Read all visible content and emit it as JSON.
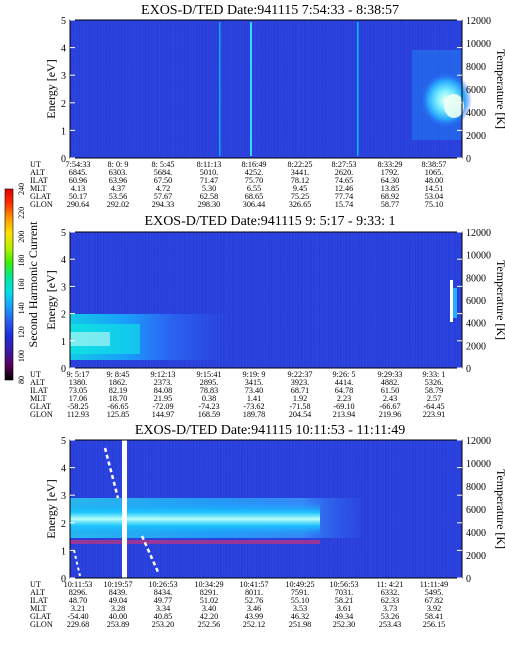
{
  "chart_data": {
    "type": "heatmap",
    "colorbar": {
      "label": "Second Harmonic Current",
      "ticks": [
        "80",
        "100",
        "120",
        "140",
        "160",
        "180",
        "200",
        "220",
        "240"
      ],
      "colors": [
        "#000000",
        "#5a005a",
        "#3b1aa8",
        "#1f2bd8",
        "#2a5cf0",
        "#1aa0ff",
        "#00e0e8",
        "#00e89a",
        "#3cf000",
        "#b8f000",
        "#ffe000",
        "#ff9a00",
        "#ff3000",
        "#e00000"
      ]
    },
    "panels": [
      {
        "title": "EXOS-D/TED   Date:941115  7:54:33 - 8:38:57",
        "ylabel": "Energy [eV]",
        "y2label": "Temperature [K]",
        "ylim": [
          0,
          5
        ],
        "y2lim": [
          0,
          12000
        ],
        "yticks": [
          "0",
          "1",
          "2",
          "3",
          "4",
          "5"
        ],
        "y2ticks": [
          "0",
          "2000",
          "4000",
          "6000",
          "8000",
          "10000",
          "12000"
        ],
        "ephemeris": [
          {
            "label": "UT",
            "values": [
              "7:54:33",
              "8: 0: 9",
              "8: 5:45",
              "8:11:13",
              "8:16:49",
              "8:22:25",
              "8:27:53",
              "8:33:29",
              "8:38:57"
            ]
          },
          {
            "label": "ALT",
            "values": [
              "6845.",
              "6303.",
              "5684.",
              "5010.",
              "4252.",
              "3441.",
              "2620.",
              "1792.",
              "1065."
            ]
          },
          {
            "label": "ILAT",
            "values": [
              "60.96",
              "63.96",
              "67.50",
              "71.47",
              "75.70",
              "78.12",
              "74.65",
              "64.30",
              "48.00"
            ]
          },
          {
            "label": "MLT",
            "values": [
              "4.13",
              "4.37",
              "4.72",
              "5.30",
              "6.55",
              "9.45",
              "12.46",
              "13.85",
              "14.51"
            ]
          },
          {
            "label": "GLAT",
            "values": [
              "50.17",
              "53.56",
              "57.67",
              "62.58",
              "68.65",
              "75.25",
              "77.74",
              "68.92",
              "53.04"
            ]
          },
          {
            "label": "GLON",
            "values": [
              "290.64",
              "292.02",
              "294.33",
              "298.30",
              "306.44",
              "326.65",
              "15.74",
              "58.77",
              "75.10"
            ]
          }
        ]
      },
      {
        "title": "EXOS-D/TED   Date:941115  9: 5:17 - 9:33: 1",
        "ylabel": "Energy [eV]",
        "y2label": "Temperature [K]",
        "ylim": [
          0,
          5
        ],
        "y2lim": [
          0,
          12000
        ],
        "yticks": [
          "0",
          "1",
          "2",
          "3",
          "4",
          "5"
        ],
        "y2ticks": [
          "0",
          "2000",
          "4000",
          "6000",
          "8000",
          "10000",
          "12000"
        ],
        "ephemeris": [
          {
            "label": "UT",
            "values": [
              "9: 5:17",
              "9: 8:45",
              "9:12:13",
              "9:15:41",
              "9:19: 9",
              "9:22:37",
              "9:26: 5",
              "9:29:33",
              "9:33: 1"
            ]
          },
          {
            "label": "ALT",
            "values": [
              "1380.",
              "1862.",
              "2373.",
              "2895.",
              "3415.",
              "3923.",
              "4414.",
              "4882.",
              "5326."
            ]
          },
          {
            "label": "ILAT",
            "values": [
              "73.05",
              "82.19",
              "84.08",
              "78.83",
              "73.40",
              "68.71",
              "64.78",
              "61.50",
              "58.79"
            ]
          },
          {
            "label": "MLT",
            "values": [
              "17.06",
              "18.70",
              "21.95",
              "0.38",
              "1.41",
              "1.92",
              "2.23",
              "2.43",
              "2.57"
            ]
          },
          {
            "label": "GLAT",
            "values": [
              "-58.25",
              "-66.65",
              "-72.09",
              "-74.23",
              "-73.62",
              "-71.58",
              "-69.10",
              "-66.67",
              "-64.45"
            ]
          },
          {
            "label": "GLON",
            "values": [
              "112.93",
              "125.85",
              "144.97",
              "168.59",
              "189.78",
              "204.54",
              "213.94",
              "219.96",
              "223.91"
            ]
          }
        ]
      },
      {
        "title": "EXOS-D/TED   Date:941115  10:11:53 - 11:11:49",
        "ylabel": "Energy [eV]",
        "y2label": "Temperature [K]",
        "ylim": [
          0,
          5
        ],
        "y2lim": [
          0,
          12000
        ],
        "yticks": [
          "0",
          "1",
          "2",
          "3",
          "4",
          "5"
        ],
        "y2ticks": [
          "0",
          "2000",
          "4000",
          "6000",
          "8000",
          "10000",
          "12000"
        ],
        "ephemeris": [
          {
            "label": "UT",
            "values": [
              "10:11:53",
              "10:19:57",
              "10:26:53",
              "10:34:29",
              "10:41:57",
              "10:49:25",
              "10:56:53",
              "11: 4:21",
              "11:11:49"
            ]
          },
          {
            "label": "ALT",
            "values": [
              "8296.",
              "8439.",
              "8434.",
              "8291.",
              "8011.",
              "7591.",
              "7031.",
              "6332.",
              "5495."
            ]
          },
          {
            "label": "ILAT",
            "values": [
              "48.70",
              "49.04",
              "49.77",
              "51.02",
              "52.76",
              "55.10",
              "58.21",
              "62.33",
              "67.82"
            ]
          },
          {
            "label": "MLT",
            "values": [
              "3.21",
              "3.28",
              "3.34",
              "3.40",
              "3.46",
              "3.53",
              "3.61",
              "3.73",
              "3.92"
            ]
          },
          {
            "label": "GLAT",
            "values": [
              "-54.40",
              "40.00",
              "40.85",
              "42.20",
              "43.99",
              "46.32",
              "49.34",
              "53.26",
              "58.41"
            ]
          },
          {
            "label": "GLON",
            "values": [
              "229.68",
              "253.89",
              "253.20",
              "252.56",
              "252.12",
              "251.98",
              "252.30",
              "253.43",
              "256.15"
            ]
          }
        ]
      }
    ]
  }
}
